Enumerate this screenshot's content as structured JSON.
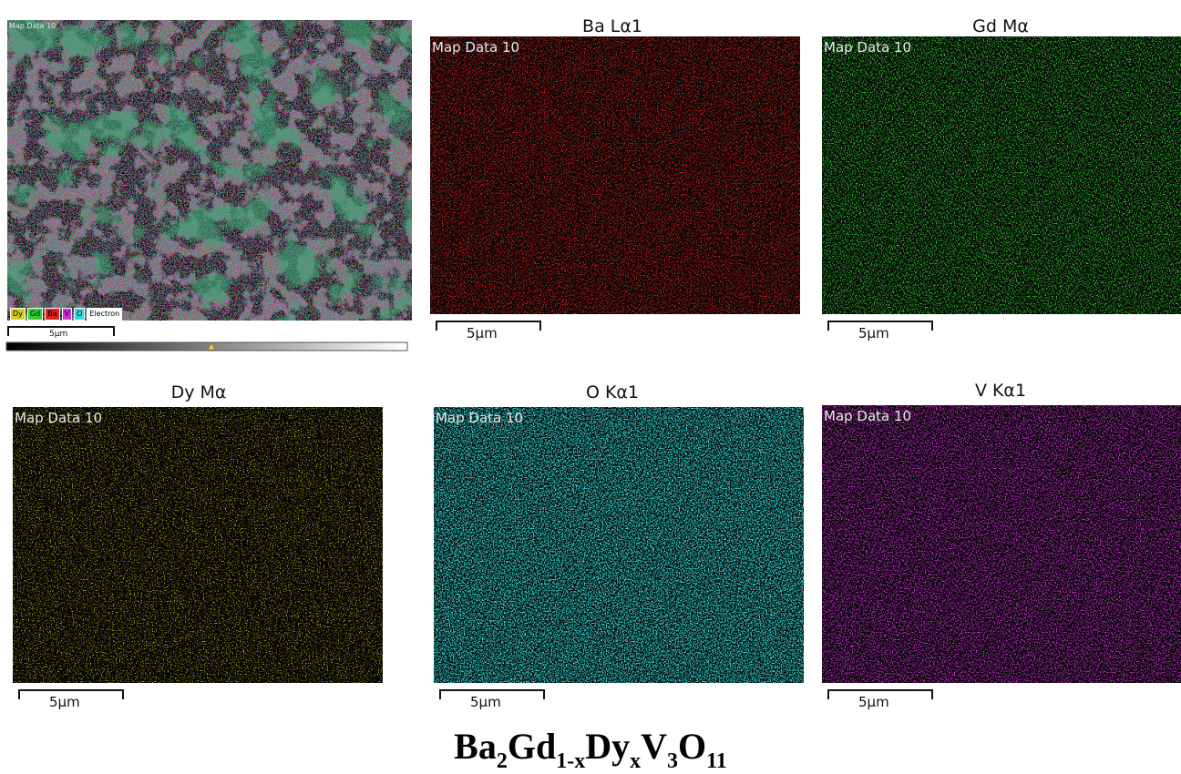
{
  "composite": {
    "map_label": "Map Data 10",
    "legend": [
      "Dy",
      "Gd",
      "Ba",
      "V",
      "O",
      "Electron"
    ],
    "scale_label": "5µm"
  },
  "panels": [
    {
      "title": "Ba Lα1",
      "map_label": "Map Data 10",
      "scale_label": "5µm"
    },
    {
      "title": "Gd Mα",
      "map_label": "Map Data 10",
      "scale_label": "5µm"
    },
    {
      "title": "Dy Mα",
      "map_label": "Map Data 10",
      "scale_label": "5µm"
    },
    {
      "title": "O Kα1",
      "map_label": "Map Data 10",
      "scale_label": "5µm"
    },
    {
      "title": "V Kα1",
      "map_label": "Map Data 10",
      "scale_label": "5µm"
    }
  ],
  "caption": [
    {
      "text": "Ba",
      "sub": "2"
    },
    {
      "text": "Gd",
      "sub": "1-x"
    },
    {
      "text": "Dy",
      "sub": "x"
    },
    {
      "text": "V",
      "sub": "3"
    },
    {
      "text": "O",
      "sub": "11"
    }
  ]
}
